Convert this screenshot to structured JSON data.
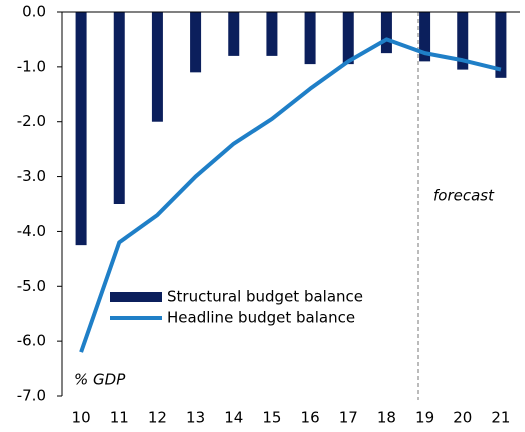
{
  "chart_data": {
    "type": "bar_line",
    "categories": [
      "10",
      "11",
      "12",
      "13",
      "14",
      "15",
      "16",
      "17",
      "18",
      "19",
      "20",
      "21"
    ],
    "series": [
      {
        "name": "Structural budget balance",
        "type": "bar",
        "color": "#0b1f5c",
        "values": [
          -4.25,
          -3.5,
          -2.0,
          -1.1,
          -0.8,
          -0.8,
          -0.95,
          -0.95,
          -0.75,
          -0.9,
          -1.05,
          -1.2
        ]
      },
      {
        "name": "Headline budget balance",
        "type": "line",
        "color": "#1f7fc7",
        "values": [
          -6.2,
          -4.2,
          -3.7,
          -3.0,
          -2.4,
          -1.95,
          -1.4,
          -0.9,
          -0.5,
          -0.75,
          -0.88,
          -1.05
        ]
      }
    ],
    "ylim": [
      -7,
      0
    ],
    "yticks": [
      {
        "value": 0,
        "label": "0.0"
      },
      {
        "value": -1,
        "label": "-1.0"
      },
      {
        "value": -2,
        "label": "-2.0"
      },
      {
        "value": -3,
        "label": "-3.0"
      },
      {
        "value": -4,
        "label": "-4.0"
      },
      {
        "value": -5,
        "label": "-5.0"
      },
      {
        "value": -6,
        "label": "-6.0"
      },
      {
        "value": -7,
        "label": "-7.0"
      }
    ],
    "annotations": [
      "forecast",
      "% GDP"
    ]
  }
}
